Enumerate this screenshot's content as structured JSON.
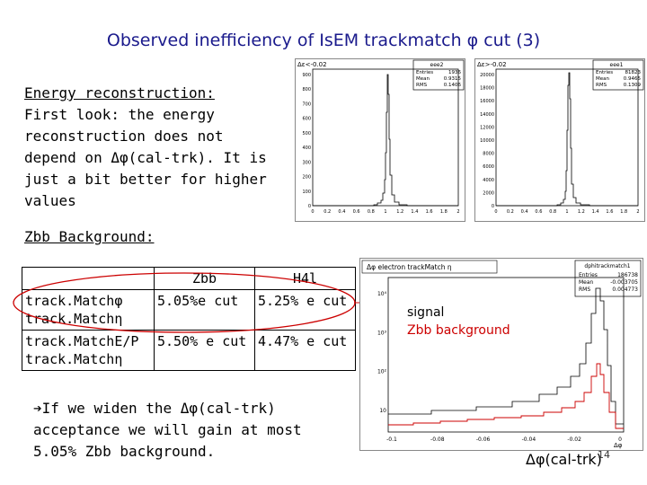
{
  "title": "Observed inefficiency of IsEM trackmatch φ cut (3)",
  "energy": {
    "heading": "Energy reconstruction:",
    "lines": [
      "First look: the energy",
      "reconstruction does not",
      "depend on Δφ(cal-trk). It is",
      "just a bit better for higher",
      "values"
    ]
  },
  "zbb_heading": "Zbb Background:",
  "table": {
    "headers": [
      "",
      "Zbb",
      "H4l"
    ],
    "rows": [
      {
        "label_1": "track.Matchφ",
        "label_2": "track.Matchη",
        "zbb": "5.05%e cut",
        "h4l": "5.25% e cut"
      },
      {
        "label_1": "track.MatchE/P",
        "label_2": "track.Matchη",
        "zbb": "5.50% e cut",
        "h4l": "4.47% e cut"
      }
    ]
  },
  "conclusion": {
    "arrow": "➔",
    "line1": "If we widen the Δφ(cal-trk)",
    "line2": "acceptance we will gain at most",
    "line3": "5.05% Zbb background."
  },
  "plot_left": {
    "header": "Δε<-0.02",
    "stats_title": "eee2",
    "stats": [
      [
        "Entries",
        "1936"
      ],
      [
        "Mean",
        "0.9315"
      ],
      [
        "RMS",
        "0.1406"
      ]
    ],
    "yticks": [
      "900",
      "800",
      "700",
      "600",
      "500",
      "400",
      "300",
      "200",
      "100",
      "0"
    ],
    "xticks": [
      "0",
      "0.2",
      "0.4",
      "0.6",
      "0.8",
      "1",
      "1.2",
      "1.4",
      "1.6",
      "1.8",
      "2"
    ]
  },
  "plot_right": {
    "header": "Δε>-0.02",
    "stats_title": "eee1",
    "stats": [
      [
        "Entries",
        "81823"
      ],
      [
        "Mean",
        "0.9465"
      ],
      [
        "RMS",
        "0.1309"
      ]
    ],
    "yticks": [
      "20000",
      "18000",
      "16000",
      "14000",
      "12000",
      "10000",
      "8000",
      "6000",
      "4000",
      "2000",
      "0"
    ],
    "xticks": [
      "0",
      "0.2",
      "0.4",
      "0.6",
      "0.8",
      "1",
      "1.2",
      "1.4",
      "1.6",
      "1.8",
      "2"
    ]
  },
  "plot_bottom": {
    "header": "Δφ electron trackMatch η",
    "stats_title": "dphitrackmatch1",
    "stats": [
      [
        "Entries",
        "186738"
      ],
      [
        "Mean",
        "-0.003705"
      ],
      [
        "RMS",
        "0.004773"
      ]
    ],
    "yticks": [
      "10⁴",
      "10³",
      "10²",
      "10"
    ],
    "xticks": [
      "-0.1",
      "-0.08",
      "-0.06",
      "-0.04",
      "-0.02",
      "0"
    ],
    "xaxis_unit": "Δφ"
  },
  "legend": {
    "signal": "signal",
    "zbb": "Zbb background"
  },
  "dphi_label": "Δφ(cal-trk)",
  "page_number": "14",
  "colors": {
    "title": "#1a1a8c",
    "zbb": "#cc0000",
    "circle": "#cc0000"
  }
}
